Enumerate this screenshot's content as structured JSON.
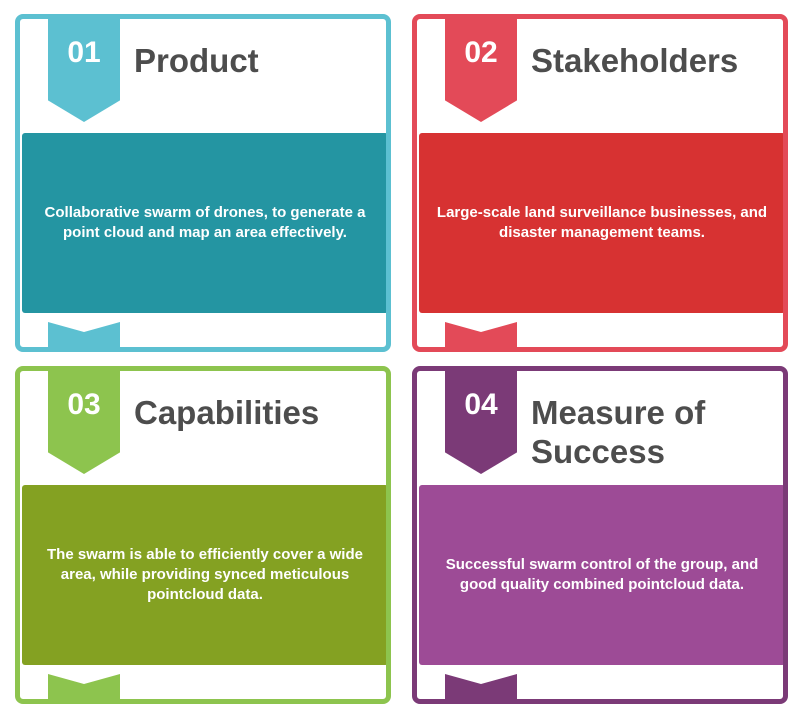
{
  "cards": [
    {
      "number": "01",
      "title": "Product",
      "description": "Collaborative swarm of drones, to generate a point cloud and map an area effectively.",
      "color": "#5cc0d1"
    },
    {
      "number": "02",
      "title": "Stakeholders",
      "description": "Large-scale land surveillance businesses, and disaster management teams.",
      "color": "#e34a58"
    },
    {
      "number": "03",
      "title": "Capabilities",
      "description": "The swarm is able to efficiently cover a wide area, while providing synced meticulous pointcloud data.",
      "color": "#8dc44e"
    },
    {
      "number": "04",
      "title": "Measure of Success",
      "description": "Successful swarm control of the group, and good quality combined pointcloud data.",
      "color": "#7b3a77"
    }
  ]
}
